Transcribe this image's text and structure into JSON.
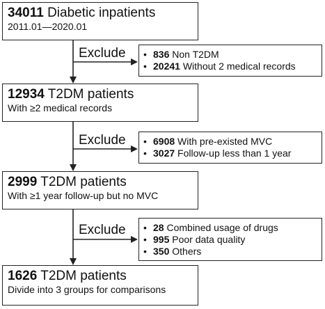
{
  "boxes": [
    {
      "count": "34011",
      "title": "Diabetic inpatients",
      "subtitle": "2011.01—2020.01"
    },
    {
      "count": "12934",
      "title": "T2DM patients",
      "subtitle": "With ≥2 medical records"
    },
    {
      "count": "2999",
      "title": "T2DM patients",
      "subtitle": "With ≥1 year follow-up but no MVC"
    },
    {
      "count": "1626",
      "title": "T2DM patients",
      "subtitle": "Divide into 3 groups for comparisons"
    }
  ],
  "exclude_label": "Exclude",
  "bullet": "•",
  "exclusions": [
    [
      {
        "count": "836",
        "text": "Non T2DM"
      },
      {
        "count": "20241",
        "text": "Without 2 medical records"
      }
    ],
    [
      {
        "count": "6908",
        "text": "With pre-existed MVC"
      },
      {
        "count": "3027",
        "text": "Follow-up less than 1 year"
      }
    ],
    [
      {
        "count": "28",
        "text": "Combined usage of drugs"
      },
      {
        "count": "995",
        "text": "Poor data quality"
      },
      {
        "count": "350",
        "text": "Others"
      }
    ]
  ]
}
